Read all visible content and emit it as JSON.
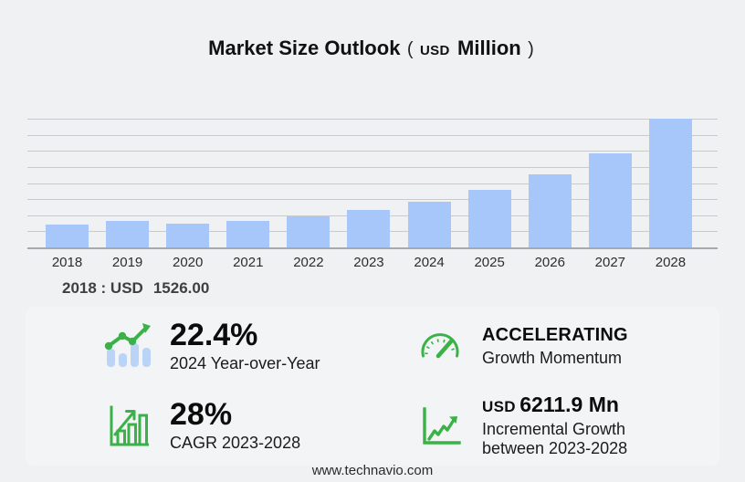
{
  "title": {
    "main": "Market Size Outlook",
    "paren_open": "(",
    "currency": "USD",
    "unit": "Million",
    "paren_close": ")"
  },
  "chart_data": {
    "type": "bar",
    "title": "Market Size Outlook (USD Million)",
    "xlabel": "",
    "ylabel": "",
    "categories": [
      "2018",
      "2019",
      "2020",
      "2021",
      "2022",
      "2023",
      "2024",
      "2025",
      "2026",
      "2027",
      "2028"
    ],
    "values": [
      1526,
      1810,
      1600,
      1820,
      2130,
      2550,
      3121,
      3890,
      4950,
      6400,
      8762
    ],
    "ylim": [
      0,
      9000
    ],
    "grid": true,
    "legend": "none",
    "bar_color": "#a7c6f9"
  },
  "base_year": {
    "label": "2018 : USD",
    "value": "1526.00"
  },
  "stats": [
    {
      "icon": "growth-trend-bars-icon",
      "value": "22.4%",
      "caption": "2024 Year-over-Year"
    },
    {
      "icon": "speedometer-icon",
      "value": "ACCELERATING",
      "caption": "Growth Momentum"
    },
    {
      "icon": "bar-graph-arrow-icon",
      "value": "28%",
      "caption": "CAGR 2023-2028"
    },
    {
      "icon": "line-graph-arrow-icon",
      "value_prefix": "USD",
      "value": "6211.9 Mn",
      "caption_line1": "Incremental Growth",
      "caption_line2": "between 2023-2028"
    }
  ],
  "footer": {
    "url": "www.technavio.com"
  },
  "colors": {
    "background": "#f0f1f2",
    "card_background": "#f3f4f6",
    "bar_blue": "#a7c6f9",
    "icon_blue": "#b9d4f6",
    "accent_green": "#3bb248",
    "gridline": "#c9cacd",
    "axis_line": "#a8a9ad"
  }
}
